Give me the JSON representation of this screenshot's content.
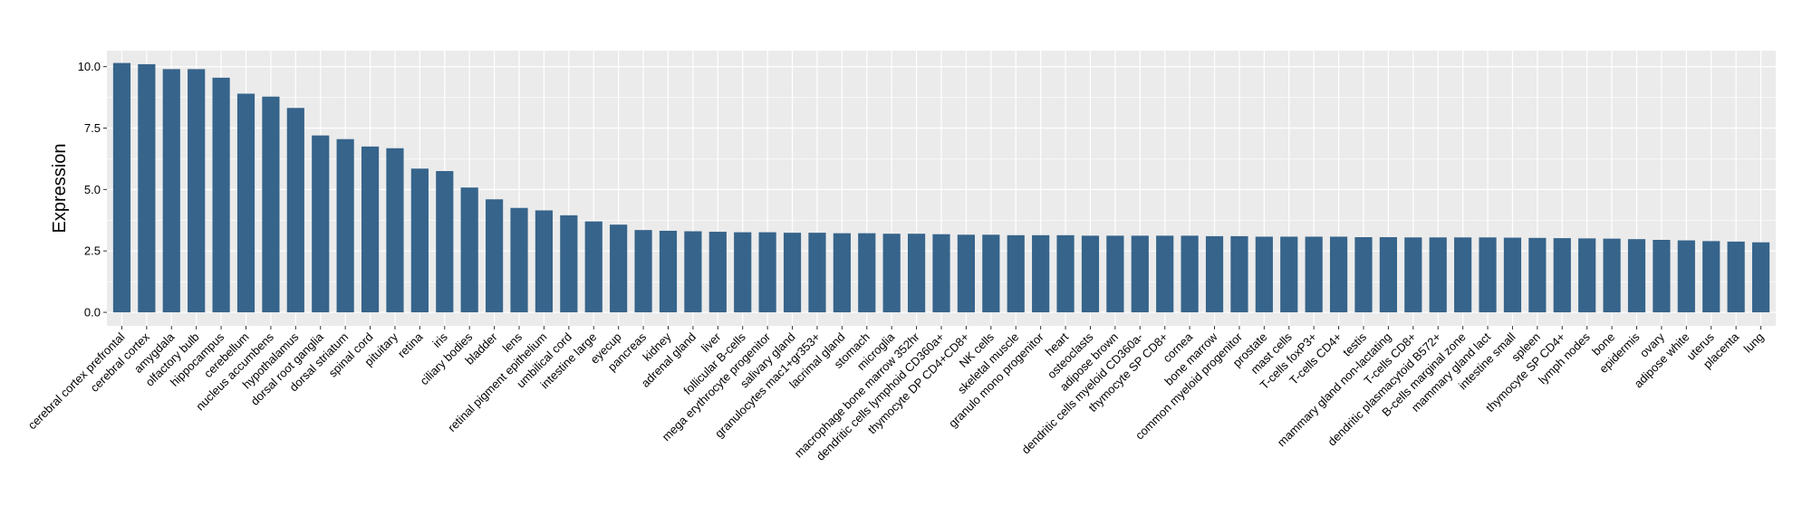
{
  "chart_data": {
    "type": "bar",
    "xlabel": "",
    "ylabel": "Expression",
    "ylim": [
      -0.55,
      10.65
    ],
    "yticks": [
      0.0,
      2.5,
      5.0,
      7.5,
      10.0
    ],
    "ytick_labels": [
      "0.0",
      "2.5",
      "5.0",
      "7.5",
      "10.0"
    ],
    "grid": true,
    "panel_background": "#EBEBEB",
    "grid_color": "#FFFFFF",
    "bar_color": "#36648B",
    "categories": [
      "cerebral cortex prefrontal",
      "cerebral cortex",
      "amygdala",
      "olfactory bulb",
      "hippocampus",
      "cerebellum",
      "nucleus accumbens",
      "hypothalamus",
      "dorsal root ganglia",
      "dorsal striatum",
      "spinal cord",
      "pituitary",
      "retina",
      "iris",
      "ciliary bodies",
      "bladder",
      "lens",
      "retinal pigment epithelium",
      "umbilical cord",
      "intestine large",
      "eyecup",
      "pancreas",
      "kidney",
      "adrenal gland",
      "liver",
      "follicular B-cells",
      "mega erythrocyte progenitor",
      "salivary gland",
      "granulocytes mac1+gr353+",
      "lacrimal gland",
      "stomach",
      "microglia",
      "macrophage bone marrow 352hr",
      "dendritic cells lymphoid CD360a+",
      "thymocyte DP CD4+CD8+",
      "NK cells",
      "skeletal muscle",
      "granulo mono progenitor",
      "heart",
      "osteoclasts",
      "adipose brown",
      "dendritic cells myeloid CD360a-",
      "thymocyte SP CD8+",
      "cornea",
      "bone marrow",
      "common myeloid progenitor",
      "prostate",
      "mast cells",
      "T-cells foxP3+",
      "T-cells CD4+",
      "testis",
      "mammary gland non-lactating",
      "T-cells CD8+",
      "dendritic plasmacytoid B572+",
      "B-cells marginal zone",
      "mammary gland  lact",
      "intestine small",
      "spleen",
      "thymocyte SP CD4+",
      "lymph nodes",
      "bone",
      "epidermis",
      "ovary",
      "adipose white",
      "uterus",
      "placenta",
      "lung"
    ],
    "values": [
      10.15,
      10.1,
      9.9,
      9.9,
      9.55,
      8.9,
      8.78,
      8.32,
      7.2,
      7.05,
      6.75,
      6.68,
      5.85,
      5.75,
      5.08,
      4.6,
      4.25,
      4.15,
      3.95,
      3.7,
      3.57,
      3.35,
      3.32,
      3.3,
      3.28,
      3.26,
      3.26,
      3.24,
      3.24,
      3.22,
      3.22,
      3.2,
      3.2,
      3.18,
      3.16,
      3.16,
      3.14,
      3.14,
      3.14,
      3.12,
      3.12,
      3.12,
      3.12,
      3.12,
      3.1,
      3.1,
      3.08,
      3.08,
      3.08,
      3.08,
      3.06,
      3.06,
      3.05,
      3.05,
      3.05,
      3.05,
      3.04,
      3.03,
      3.02,
      3.01,
      3.0,
      2.98,
      2.95,
      2.93,
      2.9,
      2.88,
      2.85
    ]
  }
}
